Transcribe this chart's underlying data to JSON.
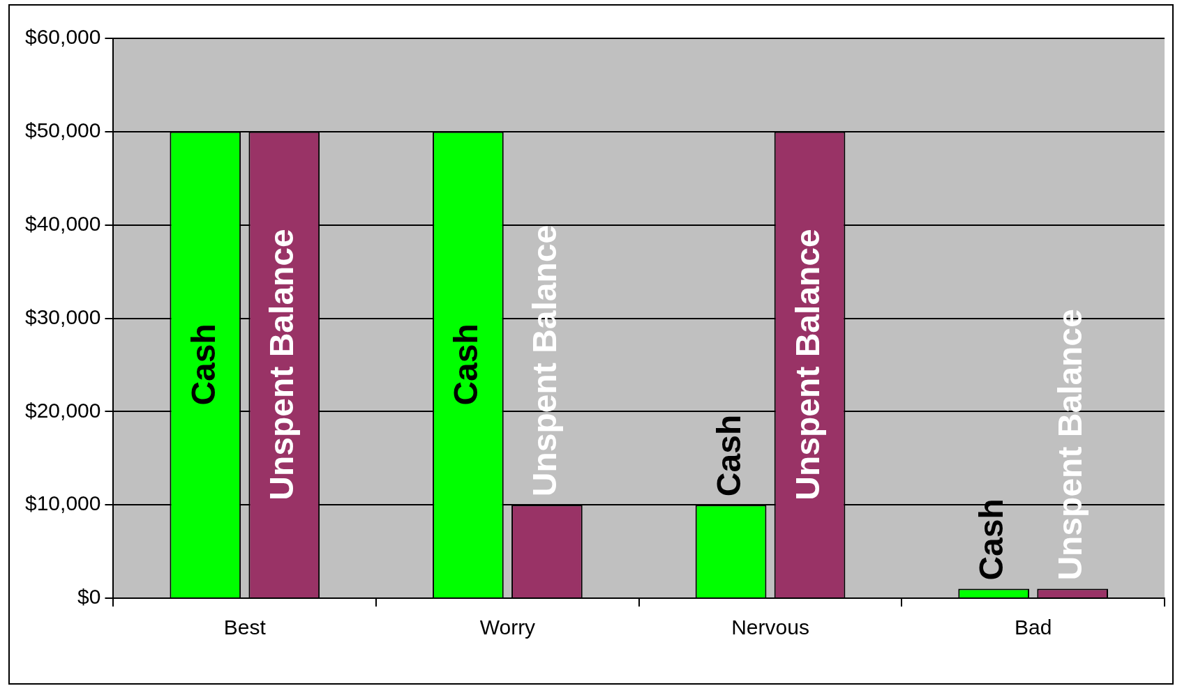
{
  "chart_data": {
    "type": "bar",
    "categories": [
      "Best",
      "Worry",
      "Nervous",
      "Bad"
    ],
    "series": [
      {
        "name": "Cash",
        "color": "#00ff00",
        "values": [
          50000,
          50000,
          10000,
          1000
        ]
      },
      {
        "name": "Unspent Balance",
        "color": "#993366",
        "values": [
          50000,
          10000,
          50000,
          1000
        ]
      }
    ],
    "ylim": [
      0,
      60000
    ],
    "yticks": [
      {
        "value": 0,
        "label": "$0"
      },
      {
        "value": 10000,
        "label": "$10,000"
      },
      {
        "value": 20000,
        "label": "$20,000"
      },
      {
        "value": 30000,
        "label": "$30,000"
      },
      {
        "value": 40000,
        "label": "$40,000"
      },
      {
        "value": 50000,
        "label": "$50,000"
      },
      {
        "value": 60000,
        "label": "$60,000"
      }
    ],
    "grid": "y",
    "legend": false
  }
}
